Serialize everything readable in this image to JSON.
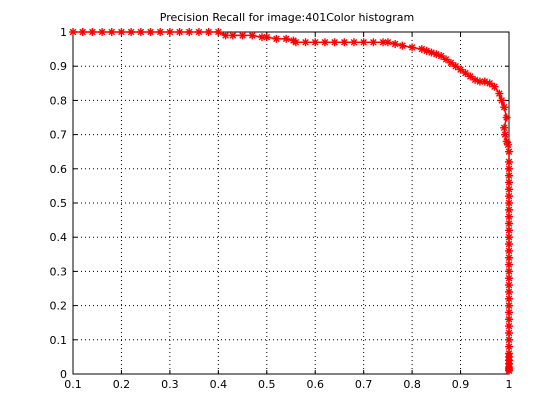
{
  "chart_data": {
    "type": "line",
    "title": "Precision Recall for image:401Color histogram",
    "xlabel": "",
    "ylabel": "",
    "xlim": [
      0.1,
      1
    ],
    "ylim": [
      0,
      1
    ],
    "grid": true,
    "marker": "asterisk",
    "line_color": "#ff0000",
    "axis_color": "#000000",
    "grid_color": "#000000",
    "x_ticks": [
      "0.1",
      "0.2",
      "0.3",
      "0.4",
      "0.5",
      "0.6",
      "0.7",
      "0.8",
      "0.9",
      "1"
    ],
    "y_ticks": [
      "0",
      "0.1",
      "0.2",
      "0.3",
      "0.4",
      "0.5",
      "0.6",
      "0.7",
      "0.8",
      "0.9",
      "1"
    ],
    "series": [
      {
        "x": [
          0.1,
          0.12,
          0.14,
          0.16,
          0.18,
          0.2,
          0.22,
          0.24,
          0.26,
          0.28,
          0.3,
          0.32,
          0.34,
          0.36,
          0.38,
          0.4,
          0.415,
          0.43,
          0.45,
          0.47,
          0.49,
          0.5,
          0.52,
          0.54,
          0.555,
          0.56,
          0.58,
          0.6,
          0.62,
          0.64,
          0.66,
          0.68,
          0.7,
          0.72,
          0.74,
          0.75,
          0.765,
          0.78,
          0.8,
          0.82,
          0.83,
          0.84,
          0.85,
          0.86,
          0.87,
          0.88,
          0.89,
          0.9,
          0.91,
          0.92,
          0.93,
          0.94,
          0.95,
          0.96,
          0.97,
          0.98,
          0.985,
          0.99,
          0.995,
          0.99,
          0.992,
          0.995,
          0.998,
          1,
          1,
          1,
          1,
          1,
          1,
          1,
          1,
          1,
          1,
          1,
          1,
          1,
          1,
          1,
          1,
          1,
          1,
          1,
          1,
          1,
          1,
          1,
          1,
          1,
          1,
          1,
          1,
          1,
          1,
          1,
          1,
          1,
          1,
          1,
          1,
          1
        ],
        "y": [
          1,
          1,
          1,
          1,
          1,
          1,
          1,
          1,
          1,
          1,
          1,
          1,
          1,
          1,
          1,
          1,
          0.99,
          0.99,
          0.99,
          0.99,
          0.985,
          0.985,
          0.98,
          0.98,
          0.975,
          0.97,
          0.97,
          0.97,
          0.97,
          0.97,
          0.97,
          0.97,
          0.97,
          0.97,
          0.97,
          0.97,
          0.965,
          0.96,
          0.955,
          0.95,
          0.945,
          0.94,
          0.935,
          0.93,
          0.92,
          0.91,
          0.9,
          0.89,
          0.88,
          0.87,
          0.86,
          0.855,
          0.855,
          0.85,
          0.84,
          0.82,
          0.8,
          0.78,
          0.75,
          0.72,
          0.7,
          0.68,
          0.67,
          0.65,
          0.62,
          0.6,
          0.58,
          0.56,
          0.54,
          0.52,
          0.5,
          0.48,
          0.46,
          0.44,
          0.42,
          0.4,
          0.38,
          0.36,
          0.34,
          0.32,
          0.3,
          0.28,
          0.26,
          0.24,
          0.22,
          0.2,
          0.18,
          0.16,
          0.14,
          0.12,
          0.1,
          0.08,
          0.06,
          0.05,
          0.04,
          0.03,
          0.02,
          0.015,
          0.01,
          0.01
        ]
      }
    ]
  }
}
